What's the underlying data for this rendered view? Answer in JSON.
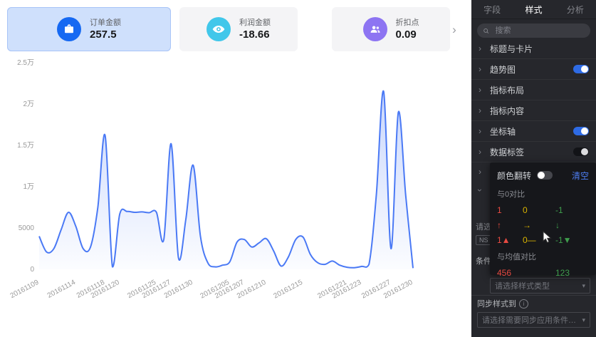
{
  "indicators": {
    "cards": [
      {
        "label": "订单金额",
        "value": "257.5",
        "icon": "briefcase-icon",
        "accent": "#1669f2",
        "bg": "#cfe0fc",
        "selected": true
      },
      {
        "label": "利润金额",
        "value": "-18.66",
        "icon": "eye-icon",
        "accent": "#41c7ea",
        "bg": "#f4f4f6",
        "selected": false
      },
      {
        "label": "折扣点",
        "value": "0.09",
        "icon": "users-icon",
        "accent": "#8d74f2",
        "bg": "#f4f4f6",
        "selected": false
      }
    ],
    "more_arrow": "›"
  },
  "chart_data": {
    "type": "area",
    "title": "",
    "xlabel": "",
    "ylabel": "",
    "ylim": [
      0,
      25000
    ],
    "line_color": "#4a79f5",
    "x": [
      "20161109",
      "20161110",
      "20161111",
      "20161112",
      "20161113",
      "20161114",
      "20161115",
      "20161116",
      "20161117",
      "20161118",
      "20161119",
      "20161120",
      "20161121",
      "20161122",
      "20161123",
      "20161124",
      "20161125",
      "20161126",
      "20161127",
      "20161128",
      "20161129",
      "20161130",
      "20161201",
      "20161202",
      "20161203",
      "20161204",
      "20161205",
      "20161206",
      "20161207",
      "20161208",
      "20161209",
      "20161210",
      "20161211",
      "20161212",
      "20161213",
      "20161214",
      "20161215",
      "20161216",
      "20161217",
      "20161218",
      "20161219",
      "20161220",
      "20161221",
      "20161222",
      "20161223",
      "20161224",
      "20161225",
      "20161226",
      "20161227",
      "20161228",
      "20161229",
      "20161230"
    ],
    "values": [
      4000,
      2100,
      2500,
      4800,
      6900,
      5200,
      2500,
      2700,
      7500,
      16200,
      300,
      6700,
      7000,
      6900,
      6950,
      6850,
      6900,
      3600,
      15200,
      1400,
      6000,
      12600,
      4000,
      800,
      300,
      500,
      900,
      3300,
      3600,
      2700,
      3200,
      3700,
      2200,
      400,
      1500,
      3600,
      3900,
      1800,
      800,
      600,
      1000,
      500,
      250,
      200,
      350,
      600,
      9000,
      21500,
      2500,
      19000,
      9000,
      150
    ],
    "yticks": {
      "values": [
        0,
        5000,
        10000,
        15000,
        20000,
        25000
      ],
      "labels": [
        "0",
        "5000",
        "1万",
        "1.5万",
        "2万",
        "2.5万"
      ]
    },
    "xticks": [
      "20161109",
      "20161114",
      "20161118",
      "20161120",
      "20161125",
      "20161127",
      "20161130",
      "20161205",
      "20161207",
      "20161210",
      "20161215",
      "20161221",
      "20161223",
      "20161227",
      "20161230"
    ]
  },
  "panel": {
    "tabs": [
      {
        "label": "字段",
        "active": false
      },
      {
        "label": "样式",
        "active": true
      },
      {
        "label": "分析",
        "active": false
      }
    ],
    "search_placeholder": "搜索",
    "sections": [
      {
        "label": "标题与卡片",
        "toggle": "none"
      },
      {
        "label": "趋势图",
        "toggle": "on"
      },
      {
        "label": "指标布局",
        "toggle": "none"
      },
      {
        "label": "指标内容",
        "toggle": "none"
      },
      {
        "label": "坐标轴",
        "toggle": "on"
      },
      {
        "label": "数据标签",
        "toggle": "dim"
      }
    ],
    "fragments": {
      "truncated_select": "请选",
      "chip": "NS",
      "condition_label": "条件"
    },
    "style_type_placeholder": "请选择样式类型",
    "sync_label": "同步样式到",
    "sync_placeholder": "请选择需要同步应用条件格式的..."
  },
  "popup": {
    "color_flip_label": "颜色翻转",
    "clear_label": "清空",
    "compare_zero": {
      "title": "与0对比",
      "rows": [
        [
          "1",
          "0",
          "-1"
        ],
        [
          "↑",
          "→",
          "↓"
        ],
        [
          "1▲",
          "0—",
          "-1▼"
        ]
      ]
    },
    "compare_mean": {
      "title": "与均值对比",
      "values": [
        "456",
        "123"
      ]
    },
    "colors": {
      "positive": "#e64a41",
      "zero": "#d9b300",
      "negative": "#3f9e4d"
    }
  }
}
